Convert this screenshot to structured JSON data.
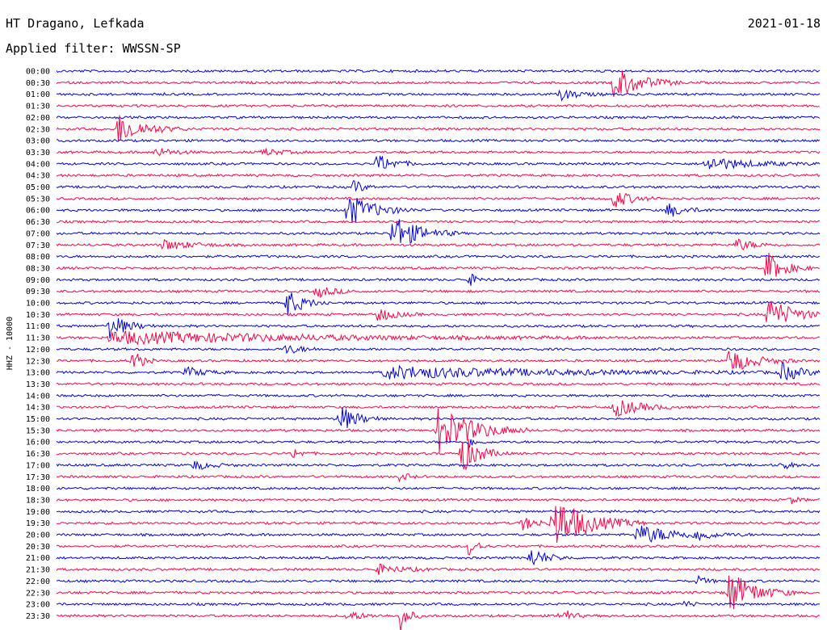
{
  "header": {
    "station": "HT Dragano, Lefkada",
    "date": "2021-01-18",
    "filter_label": "Applied filter: WWSSN-SP"
  },
  "chart_data": {
    "type": "line",
    "title": "HT Dragano, Lefkada",
    "subtitle": "Applied filter: WWSSN-SP",
    "ylabel": "HHZ - 10000",
    "line_colors": [
      "#0000e0",
      "#ff0044"
    ],
    "grid": false,
    "legend": "none",
    "tick_labels": [
      "00:00",
      "00:30",
      "01:00",
      "01:30",
      "02:00",
      "02:30",
      "03:00",
      "03:30",
      "04:00",
      "04:30",
      "05:00",
      "05:30",
      "06:00",
      "06:30",
      "07:00",
      "07:30",
      "08:00",
      "08:30",
      "09:00",
      "09:30",
      "10:00",
      "10:30",
      "11:00",
      "11:30",
      "12:00",
      "12:30",
      "13:00",
      "13:30",
      "14:00",
      "14:30",
      "15:00",
      "15:30",
      "16:00",
      "16:30",
      "17:00",
      "17:30",
      "18:00",
      "18:30",
      "19:00",
      "19:30",
      "20:00",
      "20:30",
      "21:00",
      "21:30",
      "22:00",
      "22:30",
      "23:00",
      "23:30"
    ],
    "events": [
      {
        "row": 1,
        "x": 0.73,
        "amp": 22,
        "dur": 0.03
      },
      {
        "row": 2,
        "x": 0.66,
        "amp": 7,
        "dur": 0.02
      },
      {
        "row": 5,
        "x": 0.08,
        "amp": 20,
        "dur": 0.03
      },
      {
        "row": 7,
        "x": 0.13,
        "amp": 6,
        "dur": 0.02
      },
      {
        "row": 7,
        "x": 0.27,
        "amp": 5,
        "dur": 0.02
      },
      {
        "row": 8,
        "x": 0.42,
        "amp": 12,
        "dur": 0.02
      },
      {
        "row": 8,
        "x": 0.85,
        "amp": 9,
        "dur": 0.05
      },
      {
        "row": 10,
        "x": 0.39,
        "amp": 10,
        "dur": 0.01
      },
      {
        "row": 11,
        "x": 0.73,
        "amp": 12,
        "dur": 0.02
      },
      {
        "row": 12,
        "x": 0.38,
        "amp": 22,
        "dur": 0.03
      },
      {
        "row": 12,
        "x": 0.8,
        "amp": 9,
        "dur": 0.02
      },
      {
        "row": 14,
        "x": 0.44,
        "amp": 24,
        "dur": 0.03
      },
      {
        "row": 15,
        "x": 0.14,
        "amp": 7,
        "dur": 0.03
      },
      {
        "row": 15,
        "x": 0.89,
        "amp": 8,
        "dur": 0.02
      },
      {
        "row": 17,
        "x": 0.93,
        "amp": 20,
        "dur": 0.02
      },
      {
        "row": 18,
        "x": 0.54,
        "amp": 8,
        "dur": 0.01
      },
      {
        "row": 19,
        "x": 0.34,
        "amp": 8,
        "dur": 0.02
      },
      {
        "row": 20,
        "x": 0.3,
        "amp": 18,
        "dur": 0.02
      },
      {
        "row": 21,
        "x": 0.93,
        "amp": 22,
        "dur": 0.03
      },
      {
        "row": 21,
        "x": 0.42,
        "amp": 9,
        "dur": 0.02
      },
      {
        "row": 22,
        "x": 0.07,
        "amp": 16,
        "dur": 0.02
      },
      {
        "row": 23,
        "x": 0.07,
        "amp": 8,
        "dur": 0.23
      },
      {
        "row": 24,
        "x": 0.3,
        "amp": 6,
        "dur": 0.02
      },
      {
        "row": 25,
        "x": 0.88,
        "amp": 16,
        "dur": 0.03
      },
      {
        "row": 25,
        "x": 0.1,
        "amp": 16,
        "dur": 0.01
      },
      {
        "row": 26,
        "x": 0.43,
        "amp": 8,
        "dur": 0.19
      },
      {
        "row": 26,
        "x": 0.95,
        "amp": 12,
        "dur": 0.02
      },
      {
        "row": 26,
        "x": 0.17,
        "amp": 7,
        "dur": 0.02
      },
      {
        "row": 29,
        "x": 0.73,
        "amp": 12,
        "dur": 0.03
      },
      {
        "row": 30,
        "x": 0.37,
        "amp": 18,
        "dur": 0.02
      },
      {
        "row": 31,
        "x": 0.5,
        "amp": 32,
        "dur": 0.04
      },
      {
        "row": 32,
        "x": 0.54,
        "amp": 6,
        "dur": 0.01
      },
      {
        "row": 33,
        "x": 0.53,
        "amp": 26,
        "dur": 0.02
      },
      {
        "row": 33,
        "x": 0.31,
        "amp": 7,
        "dur": 0.01
      },
      {
        "row": 34,
        "x": 0.18,
        "amp": 6,
        "dur": 0.02
      },
      {
        "row": 34,
        "x": 0.95,
        "amp": 6,
        "dur": 0.01
      },
      {
        "row": 35,
        "x": 0.45,
        "amp": 6,
        "dur": 0.01
      },
      {
        "row": 37,
        "x": 0.96,
        "amp": 5,
        "dur": 0.01
      },
      {
        "row": 39,
        "x": 0.65,
        "amp": 34,
        "dur": 0.04
      },
      {
        "row": 39,
        "x": 0.61,
        "amp": 8,
        "dur": 0.02
      },
      {
        "row": 40,
        "x": 0.76,
        "amp": 12,
        "dur": 0.05
      },
      {
        "row": 40,
        "x": 0.84,
        "amp": 8,
        "dur": 0.01
      },
      {
        "row": 41,
        "x": 0.54,
        "amp": 14,
        "dur": 0.01
      },
      {
        "row": 42,
        "x": 0.62,
        "amp": 12,
        "dur": 0.02
      },
      {
        "row": 43,
        "x": 0.42,
        "amp": 6,
        "dur": 0.03
      },
      {
        "row": 44,
        "x": 0.84,
        "amp": 6,
        "dur": 0.01
      },
      {
        "row": 45,
        "x": 0.88,
        "amp": 28,
        "dur": 0.03
      },
      {
        "row": 46,
        "x": 0.82,
        "amp": 5,
        "dur": 0.01
      },
      {
        "row": 47,
        "x": 0.45,
        "amp": 18,
        "dur": 0.01
      },
      {
        "row": 47,
        "x": 0.66,
        "amp": 14,
        "dur": 0.01
      },
      {
        "row": 47,
        "x": 0.38,
        "amp": 6,
        "dur": 0.02
      }
    ]
  }
}
